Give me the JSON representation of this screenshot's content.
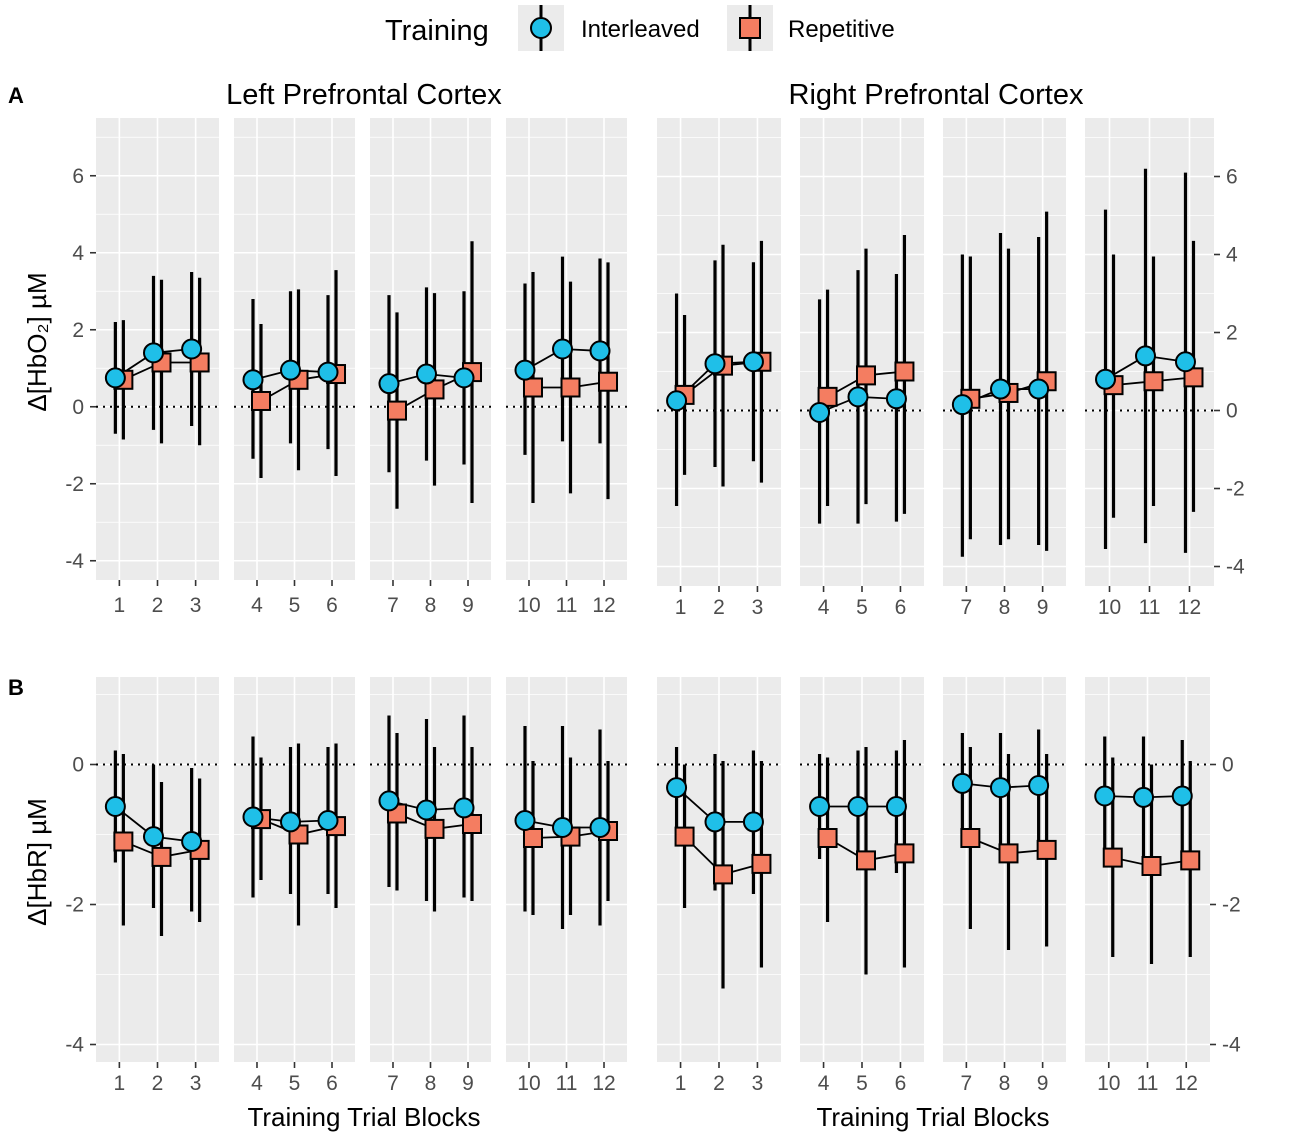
{
  "legend": {
    "title": "Training",
    "items": [
      {
        "label": "Interleaved",
        "shape": "circle",
        "color": "#1fbfe8"
      },
      {
        "label": "Repetitive",
        "shape": "square",
        "color": "#f47d61"
      }
    ]
  },
  "colors": {
    "panel_bg": "#ebebeb",
    "grid": "#ffffff",
    "line": "#000000"
  },
  "chart_data": [
    {
      "panel": "A",
      "ylabel": "Δ[HbO₂] µM",
      "xlabel": "",
      "ylim": [
        -4.5,
        7.5
      ],
      "yticks": [
        -4,
        -2,
        0,
        2,
        4,
        6
      ],
      "reference_line": 0,
      "regions": [
        {
          "title": "Left Prefrontal Cortex",
          "y_axis_side": "left",
          "facets": [
            {
              "x": [
                1,
                2,
                3
              ],
              "interleaved": {
                "mean": [
                  0.75,
                  1.4,
                  1.5
                ],
                "lower": [
                  -0.7,
                  -0.6,
                  -0.5
                ],
                "upper": [
                  2.2,
                  3.4,
                  3.5
                ]
              },
              "repetitive": {
                "mean": [
                  0.7,
                  1.15,
                  1.15
                ],
                "lower": [
                  -0.85,
                  -0.95,
                  -1.0
                ],
                "upper": [
                  2.25,
                  3.3,
                  3.35
                ]
              }
            },
            {
              "x": [
                4,
                5,
                6
              ],
              "interleaved": {
                "mean": [
                  0.7,
                  0.95,
                  0.9
                ],
                "lower": [
                  -1.35,
                  -0.95,
                  -1.1
                ],
                "upper": [
                  2.8,
                  3.0,
                  2.9
                ]
              },
              "repetitive": {
                "mean": [
                  0.15,
                  0.7,
                  0.85
                ],
                "lower": [
                  -1.85,
                  -1.65,
                  -1.8
                ],
                "upper": [
                  2.15,
                  3.05,
                  3.55
                ]
              }
            },
            {
              "x": [
                7,
                8,
                9
              ],
              "interleaved": {
                "mean": [
                  0.6,
                  0.85,
                  0.75
                ],
                "lower": [
                  -1.7,
                  -1.4,
                  -1.5
                ],
                "upper": [
                  2.9,
                  3.1,
                  3.0
                ]
              },
              "repetitive": {
                "mean": [
                  -0.1,
                  0.45,
                  0.9
                ],
                "lower": [
                  -2.65,
                  -2.05,
                  -2.5
                ],
                "upper": [
                  2.45,
                  2.95,
                  4.3
                ]
              }
            },
            {
              "x": [
                10,
                11,
                12
              ],
              "interleaved": {
                "mean": [
                  0.95,
                  1.5,
                  1.45
                ],
                "lower": [
                  -1.25,
                  -0.9,
                  -0.95
                ],
                "upper": [
                  3.2,
                  3.9,
                  3.85
                ]
              },
              "repetitive": {
                "mean": [
                  0.5,
                  0.5,
                  0.65
                ],
                "lower": [
                  -2.5,
                  -2.25,
                  -2.4
                ],
                "upper": [
                  3.5,
                  3.25,
                  3.75
                ]
              }
            }
          ]
        },
        {
          "title": "Right Prefrontal Cortex",
          "y_axis_side": "right",
          "facets": [
            {
              "x": [
                1,
                2,
                3
              ],
              "interleaved": {
                "mean": [
                  0.25,
                  1.2,
                  1.25
                ],
                "lower": [
                  -2.45,
                  -1.45,
                  -1.3
                ],
                "upper": [
                  3.0,
                  3.85,
                  3.8
                ]
              },
              "repetitive": {
                "mean": [
                  0.4,
                  1.15,
                  1.25
                ],
                "lower": [
                  -1.65,
                  -1.95,
                  -1.85
                ],
                "upper": [
                  2.45,
                  4.25,
                  4.35
                ]
              }
            },
            {
              "x": [
                4,
                5,
                6
              ],
              "interleaved": {
                "mean": [
                  -0.05,
                  0.35,
                  0.3
                ],
                "lower": [
                  -2.9,
                  -2.9,
                  -2.85
                ],
                "upper": [
                  2.85,
                  3.6,
                  3.5
                ]
              },
              "repetitive": {
                "mean": [
                  0.35,
                  0.9,
                  1.0
                ],
                "lower": [
                  -2.45,
                  -2.4,
                  -2.65
                ],
                "upper": [
                  3.1,
                  4.15,
                  4.5
                ]
              }
            },
            {
              "x": [
                7,
                8,
                9
              ],
              "interleaved": {
                "mean": [
                  0.15,
                  0.55,
                  0.55
                ],
                "lower": [
                  -3.75,
                  -3.45,
                  -3.45
                ],
                "upper": [
                  4.0,
                  4.55,
                  4.45
                ]
              },
              "repetitive": {
                "mean": [
                  0.3,
                  0.45,
                  0.75
                ],
                "lower": [
                  -3.3,
                  -3.3,
                  -3.6
                ],
                "upper": [
                  3.95,
                  4.15,
                  5.1
                ]
              }
            },
            {
              "x": [
                10,
                11,
                12
              ],
              "interleaved": {
                "mean": [
                  0.8,
                  1.4,
                  1.25
                ],
                "lower": [
                  -3.55,
                  -3.4,
                  -3.65
                ],
                "upper": [
                  5.15,
                  6.2,
                  6.1
                ]
              },
              "repetitive": {
                "mean": [
                  0.65,
                  0.75,
                  0.85
                ],
                "lower": [
                  -2.75,
                  -2.45,
                  -2.6
                ],
                "upper": [
                  4.0,
                  3.95,
                  4.35
                ]
              }
            }
          ]
        }
      ]
    },
    {
      "panel": "B",
      "ylabel": "Δ[HbR] µM",
      "xlabel": "Training Trial Blocks",
      "ylim": [
        -4.25,
        1.25
      ],
      "yticks": [
        -4,
        -2,
        0
      ],
      "reference_line": 0,
      "regions": [
        {
          "title": "",
          "y_axis_side": "left",
          "facets": [
            {
              "x": [
                1,
                2,
                3
              ],
              "interleaved": {
                "mean": [
                  -0.6,
                  -1.03,
                  -1.1
                ],
                "lower": [
                  -1.4,
                  -2.05,
                  -2.1
                ],
                "upper": [
                  0.2,
                  0.0,
                  -0.05
                ]
              },
              "repetitive": {
                "mean": [
                  -1.1,
                  -1.32,
                  -1.22
                ],
                "lower": [
                  -2.3,
                  -2.45,
                  -2.25
                ],
                "upper": [
                  0.15,
                  -0.25,
                  -0.2
                ]
              }
            },
            {
              "x": [
                4,
                5,
                6
              ],
              "interleaved": {
                "mean": [
                  -0.75,
                  -0.82,
                  -0.8
                ],
                "lower": [
                  -1.9,
                  -1.85,
                  -1.85
                ],
                "upper": [
                  0.4,
                  0.25,
                  0.25
                ]
              },
              "repetitive": {
                "mean": [
                  -0.78,
                  -1.0,
                  -0.88
                ],
                "lower": [
                  -1.65,
                  -2.3,
                  -2.05
                ],
                "upper": [
                  0.1,
                  0.3,
                  0.3
                ]
              }
            },
            {
              "x": [
                7,
                8,
                9
              ],
              "interleaved": {
                "mean": [
                  -0.52,
                  -0.65,
                  -0.62
                ],
                "lower": [
                  -1.75,
                  -1.95,
                  -1.9
                ],
                "upper": [
                  0.7,
                  0.65,
                  0.7
                ]
              },
              "repetitive": {
                "mean": [
                  -0.7,
                  -0.92,
                  -0.85
                ],
                "lower": [
                  -1.8,
                  -2.1,
                  -1.95
                ],
                "upper": [
                  0.45,
                  0.25,
                  0.25
                ]
              }
            },
            {
              "x": [
                10,
                11,
                12
              ],
              "interleaved": {
                "mean": [
                  -0.8,
                  -0.9,
                  -0.9
                ],
                "lower": [
                  -2.1,
                  -2.35,
                  -2.3
                ],
                "upper": [
                  0.55,
                  0.55,
                  0.5
                ]
              },
              "repetitive": {
                "mean": [
                  -1.05,
                  -1.03,
                  -0.95
                ],
                "lower": [
                  -2.15,
                  -2.15,
                  -1.95
                ],
                "upper": [
                  0.05,
                  0.1,
                  0.05
                ]
              }
            }
          ]
        },
        {
          "title": "",
          "y_axis_side": "right",
          "facets": [
            {
              "x": [
                1,
                2,
                3
              ],
              "interleaved": {
                "mean": [
                  -0.33,
                  -0.82,
                  -0.82
                ],
                "lower": [
                  -0.95,
                  -1.8,
                  -1.85
                ],
                "upper": [
                  0.25,
                  0.15,
                  0.2
                ]
              },
              "repetitive": {
                "mean": [
                  -1.03,
                  -1.57,
                  -1.42
                ],
                "lower": [
                  -2.05,
                  -3.2,
                  -2.9
                ],
                "upper": [
                  0.0,
                  0.05,
                  0.05
                ]
              }
            },
            {
              "x": [
                4,
                5,
                6
              ],
              "interleaved": {
                "mean": [
                  -0.6,
                  -0.6,
                  -0.6
                ],
                "lower": [
                  -1.35,
                  -1.35,
                  -1.55
                ],
                "upper": [
                  0.15,
                  0.2,
                  0.2
                ]
              },
              "repetitive": {
                "mean": [
                  -1.05,
                  -1.37,
                  -1.27
                ],
                "lower": [
                  -2.25,
                  -3.0,
                  -2.9
                ],
                "upper": [
                  0.1,
                  0.25,
                  0.35
                ]
              }
            },
            {
              "x": [
                7,
                8,
                9
              ],
              "interleaved": {
                "mean": [
                  -0.27,
                  -0.33,
                  -0.3
                ],
                "lower": [
                  -1.0,
                  -1.15,
                  -1.1
                ],
                "upper": [
                  0.45,
                  0.45,
                  0.5
                ]
              },
              "repetitive": {
                "mean": [
                  -1.05,
                  -1.27,
                  -1.22
                ],
                "lower": [
                  -2.35,
                  -2.65,
                  -2.6
                ],
                "upper": [
                  0.25,
                  0.15,
                  0.15
                ]
              }
            },
            {
              "x": [
                10,
                11,
                12
              ],
              "interleaved": {
                "mean": [
                  -0.45,
                  -0.47,
                  -0.45
                ],
                "lower": [
                  -1.3,
                  -1.35,
                  -1.3
                ],
                "upper": [
                  0.4,
                  0.4,
                  0.35
                ]
              },
              "repetitive": {
                "mean": [
                  -1.33,
                  -1.45,
                  -1.37
                ],
                "lower": [
                  -2.75,
                  -2.85,
                  -2.75
                ],
                "upper": [
                  0.1,
                  0.0,
                  0.05
                ]
              }
            }
          ]
        }
      ]
    }
  ]
}
